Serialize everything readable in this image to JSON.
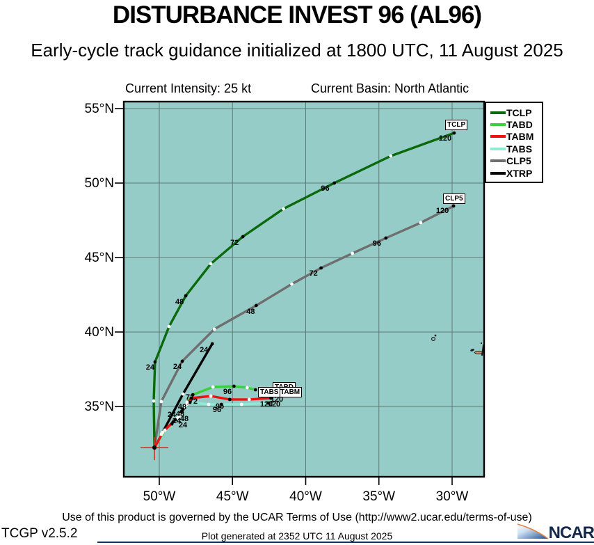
{
  "header": {
    "title": "DISTURBANCE INVEST 96 (AL96)",
    "subtitle": "Early-cycle track guidance initialized at 1800 UTC, 11 August 2025",
    "intensity": "Current Intensity: 25 kt",
    "basin": "Current Basin: North Atlantic"
  },
  "footer": {
    "terms": "Use of this product is governed by the UCAR Terms of Use (http://www2.ucar.edu/terms-of-use)",
    "version": "TCGP v2.5.2",
    "generated": "Plot generated at 2352 UTC  11 August 2025",
    "logo": "NCAR"
  },
  "colors": {
    "map_bg": "#96ccc8",
    "grid": "#5e7a76",
    "border": "#000000",
    "start_cross": "#d93025",
    "island_fill": "#c89a66",
    "island_dark": "#1d1d1d",
    "logo_navy": "#13294b",
    "logo_orange": "#e8833a",
    "logo_light": "#cfe0f2",
    "logo_blue": "#1f4e96"
  },
  "chart_data": {
    "type": "line",
    "description": "Tropical cyclone early-cycle track guidance map; tracks as lon(°W)/lat(°N) points every 12 h, black dots each 24 h, white dots each 12 h",
    "x_ticks": [
      {
        "label": "50°W",
        "lon_w": 50
      },
      {
        "label": "45°W",
        "lon_w": 45
      },
      {
        "label": "40°W",
        "lon_w": 40
      },
      {
        "label": "35°W",
        "lon_w": 35
      },
      {
        "label": "30°W",
        "lon_w": 30
      }
    ],
    "y_ticks": [
      {
        "label": "55°N",
        "lat_n": 55
      },
      {
        "label": "50°N",
        "lat_n": 50
      },
      {
        "label": "45°N",
        "lat_n": 45
      },
      {
        "label": "40°N",
        "lat_n": 40
      },
      {
        "label": "35°N",
        "lat_n": 35
      }
    ],
    "lon_range_w": [
      52.4,
      27.9
    ],
    "lat_range_n": [
      30.3,
      55.3
    ],
    "start": {
      "lon_w": 50.33,
      "lat_n": 32.24
    },
    "legend_order": [
      "TCLP",
      "TABD",
      "TABM",
      "TABS",
      "CLP5",
      "XTRP"
    ],
    "draw_order": [
      "XTRP",
      "CLP5",
      "TCLP",
      "TABS",
      "TABD",
      "TABM"
    ],
    "series": [
      {
        "name": "TCLP",
        "color": "#0a690a",
        "points": [
          [
            50.33,
            32.24,
            0
          ],
          [
            50.38,
            35.37,
            12
          ],
          [
            50.29,
            37.99,
            24
          ],
          [
            49.33,
            40.37,
            36
          ],
          [
            48.19,
            42.43,
            48
          ],
          [
            46.48,
            44.58,
            60
          ],
          [
            44.29,
            46.4,
            72
          ],
          [
            41.52,
            48.27,
            84
          ],
          [
            38.05,
            50.0,
            96
          ],
          [
            34.19,
            51.82,
            108
          ],
          [
            29.86,
            53.36,
            120
          ]
        ],
        "labels": [
          {
            "h": 24,
            "dx": -7,
            "dy": 8
          },
          {
            "h": 48,
            "dx": -9,
            "dy": 9
          },
          {
            "h": 72,
            "dx": -12,
            "dy": 9
          },
          {
            "h": 96,
            "dx": -13,
            "dy": 8
          },
          {
            "h": 120,
            "dx": -13,
            "dy": 8
          }
        ]
      },
      {
        "name": "TABD",
        "color": "#3ccf3c",
        "points": [
          [
            50.33,
            32.24,
            0
          ],
          [
            49.62,
            33.41,
            12
          ],
          [
            48.9,
            34.11,
            24
          ],
          [
            48.57,
            34.44,
            36
          ],
          [
            48.38,
            34.81,
            48
          ],
          [
            48.1,
            35.28,
            60
          ],
          [
            47.71,
            35.79,
            72
          ],
          [
            46.33,
            36.31,
            84
          ],
          [
            44.9,
            36.36,
            96
          ],
          [
            44.0,
            36.26,
            108
          ],
          [
            43.43,
            36.12,
            120
          ]
        ],
        "labels": []
      },
      {
        "name": "TABM",
        "color": "#ee1111",
        "points": [
          [
            50.33,
            32.24,
            0
          ],
          [
            49.76,
            33.27,
            12
          ],
          [
            49.05,
            33.97,
            24
          ],
          [
            48.67,
            34.3,
            36
          ],
          [
            48.48,
            34.67,
            48
          ],
          [
            48.19,
            35.09,
            60
          ],
          [
            47.81,
            35.56,
            72
          ],
          [
            46.48,
            35.7,
            84
          ],
          [
            45.19,
            35.47,
            96
          ],
          [
            43.86,
            35.47,
            108
          ],
          [
            42.38,
            35.56,
            120
          ]
        ],
        "labels": []
      },
      {
        "name": "TABS",
        "color": "#8fead6",
        "points": [
          [
            50.33,
            32.24,
            0
          ],
          [
            49.86,
            33.13,
            12
          ],
          [
            49.14,
            33.83,
            24
          ],
          [
            48.76,
            34.21,
            36
          ],
          [
            48.57,
            34.53,
            48
          ],
          [
            48.29,
            34.95,
            60
          ],
          [
            47.9,
            35.28,
            72
          ],
          [
            46.62,
            35.14,
            84
          ],
          [
            45.76,
            35.14,
            96
          ],
          [
            44.38,
            35.14,
            108
          ],
          [
            42.57,
            35.23,
            120
          ]
        ],
        "labels": []
      },
      {
        "name": "CLP5",
        "color": "#6e6e6e",
        "points": [
          [
            50.33,
            32.24,
            0
          ],
          [
            49.86,
            35.33,
            12
          ],
          [
            48.43,
            38.04,
            24
          ],
          [
            46.24,
            40.19,
            36
          ],
          [
            43.38,
            41.78,
            48
          ],
          [
            40.95,
            43.22,
            60
          ],
          [
            38.95,
            44.3,
            72
          ],
          [
            36.81,
            45.28,
            84
          ],
          [
            34.52,
            46.31,
            96
          ],
          [
            32.14,
            47.34,
            108
          ],
          [
            29.9,
            48.46,
            120
          ]
        ],
        "labels": [
          {
            "h": 24,
            "dx": -7,
            "dy": 8
          },
          {
            "h": 48,
            "dx": -8,
            "dy": 9
          },
          {
            "h": 72,
            "dx": -11,
            "dy": 8
          },
          {
            "h": 96,
            "dx": -13,
            "dy": 8
          },
          {
            "h": 120,
            "dx": -16,
            "dy": 7
          }
        ]
      },
      {
        "name": "XTRP",
        "color": "#050505",
        "points": [
          [
            50.33,
            32.24,
            0
          ],
          [
            48.38,
            35.84,
            12
          ],
          [
            46.38,
            39.21,
            24
          ]
        ],
        "labels": [
          {
            "h": 24,
            "dx": -12,
            "dy": 9
          }
        ]
      }
    ],
    "cluster_hour_labels": [
      {
        "t": "24",
        "x": 247,
        "y": 596
      },
      {
        "t": "24",
        "x": 254,
        "y": 605
      },
      {
        "t": "24",
        "x": 263,
        "y": 611
      },
      {
        "t": "48",
        "x": 262,
        "y": 585
      },
      {
        "t": "48",
        "x": 259,
        "y": 595
      },
      {
        "t": "48",
        "x": 265,
        "y": 602
      },
      {
        "t": "72",
        "x": 273,
        "y": 571
      },
      {
        "t": "72",
        "x": 278,
        "y": 577
      },
      {
        "t": "96",
        "x": 327,
        "y": 563
      },
      {
        "t": "96",
        "x": 316,
        "y": 584
      },
      {
        "t": "96",
        "x": 312,
        "y": 589
      },
      {
        "t": "120",
        "x": 398,
        "y": 574
      },
      {
        "t": "120",
        "x": 383,
        "y": 581
      },
      {
        "t": "120",
        "x": 394,
        "y": 581
      }
    ],
    "track_boxes": [
      {
        "label": "TCLP",
        "x": 640,
        "y": 172
      },
      {
        "label": "CLP5",
        "x": 637,
        "y": 278
      },
      {
        "label": "TABD",
        "x": 392,
        "y": 549
      },
      {
        "label": "TABM",
        "x": 400,
        "y": 556
      },
      {
        "label": "TABS",
        "x": 371,
        "y": 556
      }
    ],
    "islands_note": "small Azores islands drawn near 31-28W, 38-40N"
  }
}
